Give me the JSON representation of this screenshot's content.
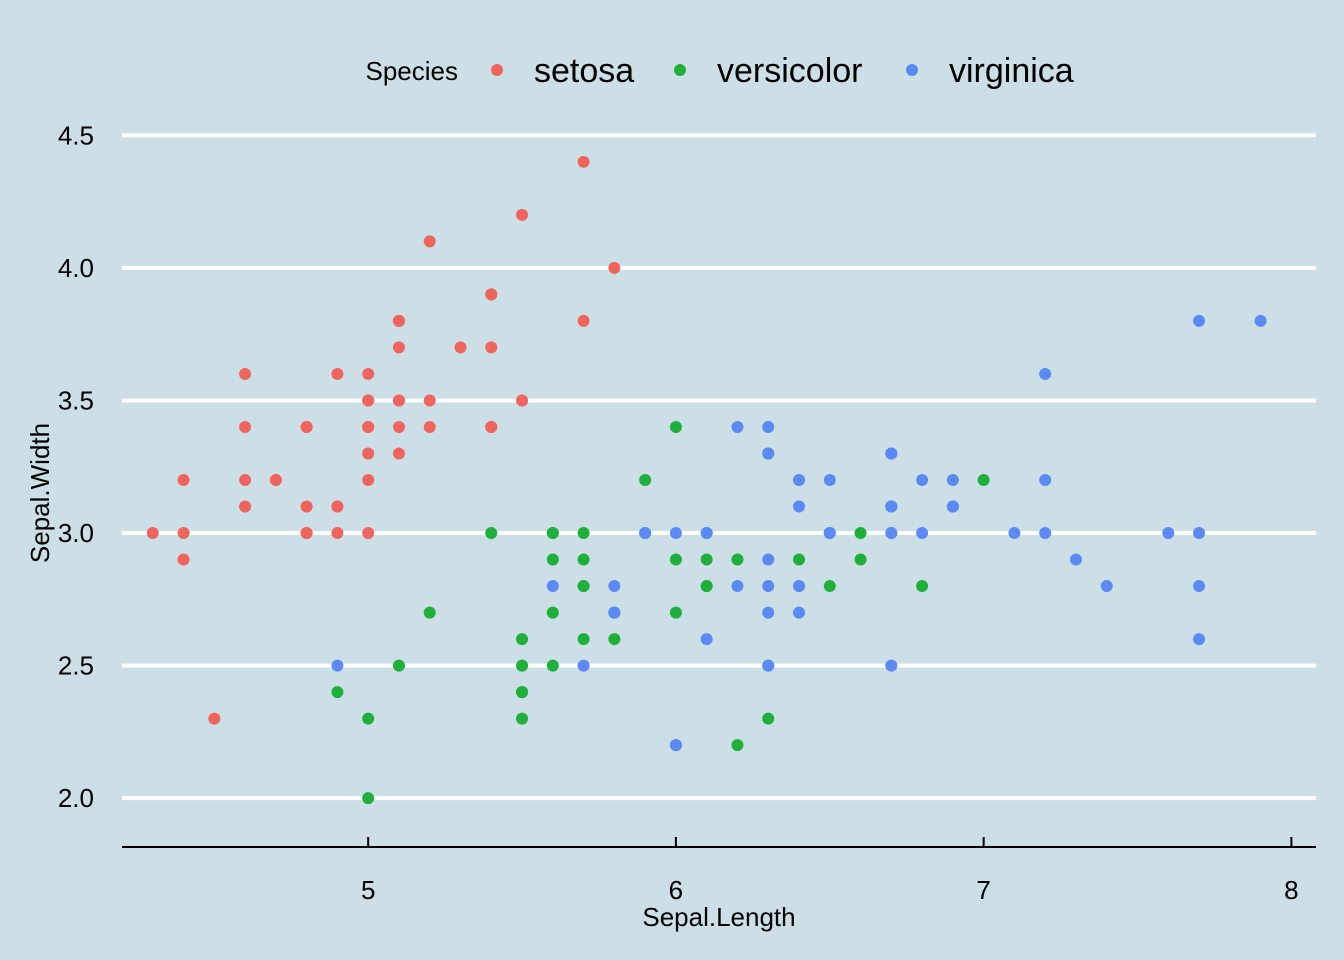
{
  "colors": {
    "background": "#cddfe6",
    "grid": "#ffffff",
    "axis": "#000000",
    "setosa": "#f0645e",
    "versicolor": "#1eb03a",
    "virginica": "#5b8af6"
  },
  "chart_data": {
    "type": "scatter",
    "title": "",
    "xlabel": "Sepal.Length",
    "ylabel": "Sepal.Width",
    "xlim": [
      4.2,
      8.08
    ],
    "ylim": [
      1.88,
      4.52
    ],
    "xticks": [
      5,
      6,
      7,
      8
    ],
    "yticks": [
      2.0,
      2.5,
      3.0,
      3.5,
      4.0,
      4.5
    ],
    "xtick_labels": [
      "5",
      "6",
      "7",
      "8"
    ],
    "ytick_labels": [
      "2.0",
      "2.5",
      "3.0",
      "3.5",
      "4.0",
      "4.5"
    ],
    "legend": {
      "title": "Species",
      "placement": "top",
      "entries": [
        "setosa",
        "versicolor",
        "virginica"
      ]
    },
    "grid": "horizontal",
    "series": [
      {
        "name": "setosa",
        "color": "#f0645e",
        "points": [
          [
            5.1,
            3.5
          ],
          [
            4.9,
            3.0
          ],
          [
            4.7,
            3.2
          ],
          [
            4.6,
            3.1
          ],
          [
            5.0,
            3.6
          ],
          [
            5.4,
            3.9
          ],
          [
            4.6,
            3.4
          ],
          [
            5.0,
            3.4
          ],
          [
            4.4,
            2.9
          ],
          [
            4.9,
            3.1
          ],
          [
            5.4,
            3.7
          ],
          [
            4.8,
            3.4
          ],
          [
            4.8,
            3.0
          ],
          [
            4.3,
            3.0
          ],
          [
            5.8,
            4.0
          ],
          [
            5.7,
            4.4
          ],
          [
            5.4,
            3.9
          ],
          [
            5.1,
            3.5
          ],
          [
            5.7,
            3.8
          ],
          [
            5.1,
            3.8
          ],
          [
            5.4,
            3.4
          ],
          [
            5.1,
            3.7
          ],
          [
            4.6,
            3.6
          ],
          [
            5.1,
            3.3
          ],
          [
            4.8,
            3.4
          ],
          [
            5.0,
            3.0
          ],
          [
            5.0,
            3.4
          ],
          [
            5.2,
            3.5
          ],
          [
            5.2,
            3.4
          ],
          [
            4.7,
            3.2
          ],
          [
            4.8,
            3.1
          ],
          [
            5.4,
            3.4
          ],
          [
            5.2,
            4.1
          ],
          [
            5.5,
            4.2
          ],
          [
            4.9,
            3.1
          ],
          [
            5.0,
            3.2
          ],
          [
            5.5,
            3.5
          ],
          [
            4.9,
            3.6
          ],
          [
            4.4,
            3.0
          ],
          [
            5.1,
            3.4
          ],
          [
            5.0,
            3.5
          ],
          [
            4.5,
            2.3
          ],
          [
            4.4,
            3.2
          ],
          [
            5.0,
            3.5
          ],
          [
            5.1,
            3.8
          ],
          [
            4.8,
            3.0
          ],
          [
            5.1,
            3.8
          ],
          [
            4.6,
            3.2
          ],
          [
            5.3,
            3.7
          ],
          [
            5.0,
            3.3
          ]
        ]
      },
      {
        "name": "versicolor",
        "color": "#1eb03a",
        "points": [
          [
            7.0,
            3.2
          ],
          [
            6.4,
            3.2
          ],
          [
            6.9,
            3.1
          ],
          [
            5.5,
            2.3
          ],
          [
            6.5,
            2.8
          ],
          [
            5.7,
            2.8
          ],
          [
            6.3,
            3.3
          ],
          [
            4.9,
            2.4
          ],
          [
            6.6,
            2.9
          ],
          [
            5.2,
            2.7
          ],
          [
            5.0,
            2.0
          ],
          [
            5.9,
            3.0
          ],
          [
            6.0,
            2.2
          ],
          [
            6.1,
            2.9
          ],
          [
            5.6,
            2.9
          ],
          [
            6.7,
            3.1
          ],
          [
            5.6,
            3.0
          ],
          [
            5.8,
            2.7
          ],
          [
            6.2,
            2.2
          ],
          [
            5.6,
            2.5
          ],
          [
            5.9,
            3.2
          ],
          [
            6.1,
            2.8
          ],
          [
            6.3,
            2.5
          ],
          [
            6.1,
            2.8
          ],
          [
            6.4,
            2.9
          ],
          [
            6.6,
            3.0
          ],
          [
            6.8,
            2.8
          ],
          [
            6.7,
            3.0
          ],
          [
            6.0,
            2.9
          ],
          [
            5.7,
            2.6
          ],
          [
            5.5,
            2.4
          ],
          [
            5.5,
            2.4
          ],
          [
            5.8,
            2.7
          ],
          [
            6.0,
            2.7
          ],
          [
            5.4,
            3.0
          ],
          [
            6.0,
            3.4
          ],
          [
            6.7,
            3.1
          ],
          [
            6.3,
            2.3
          ],
          [
            5.6,
            3.0
          ],
          [
            5.5,
            2.5
          ],
          [
            5.5,
            2.6
          ],
          [
            6.1,
            3.0
          ],
          [
            5.8,
            2.6
          ],
          [
            5.0,
            2.3
          ],
          [
            5.6,
            2.7
          ],
          [
            5.7,
            3.0
          ],
          [
            5.7,
            2.9
          ],
          [
            6.2,
            2.9
          ],
          [
            5.1,
            2.5
          ],
          [
            5.7,
            2.8
          ]
        ]
      },
      {
        "name": "virginica",
        "color": "#5b8af6",
        "points": [
          [
            6.3,
            3.3
          ],
          [
            5.8,
            2.7
          ],
          [
            7.1,
            3.0
          ],
          [
            6.3,
            2.9
          ],
          [
            6.5,
            3.0
          ],
          [
            7.6,
            3.0
          ],
          [
            4.9,
            2.5
          ],
          [
            7.3,
            2.9
          ],
          [
            6.7,
            2.5
          ],
          [
            7.2,
            3.6
          ],
          [
            6.5,
            3.2
          ],
          [
            6.4,
            2.7
          ],
          [
            6.8,
            3.0
          ],
          [
            5.7,
            2.5
          ],
          [
            5.8,
            2.8
          ],
          [
            6.4,
            3.2
          ],
          [
            6.5,
            3.0
          ],
          [
            7.7,
            3.8
          ],
          [
            7.7,
            2.6
          ],
          [
            6.0,
            2.2
          ],
          [
            6.9,
            3.2
          ],
          [
            5.6,
            2.8
          ],
          [
            7.7,
            2.8
          ],
          [
            6.3,
            2.7
          ],
          [
            6.7,
            3.3
          ],
          [
            7.2,
            3.2
          ],
          [
            6.2,
            2.8
          ],
          [
            6.1,
            3.0
          ],
          [
            6.4,
            2.8
          ],
          [
            7.2,
            3.0
          ],
          [
            7.4,
            2.8
          ],
          [
            7.9,
            3.8
          ],
          [
            6.4,
            2.8
          ],
          [
            6.3,
            2.8
          ],
          [
            6.1,
            2.6
          ],
          [
            7.7,
            3.0
          ],
          [
            6.3,
            3.4
          ],
          [
            6.4,
            3.1
          ],
          [
            6.0,
            3.0
          ],
          [
            6.9,
            3.1
          ],
          [
            6.7,
            3.1
          ],
          [
            6.9,
            3.1
          ],
          [
            5.8,
            2.7
          ],
          [
            6.8,
            3.2
          ],
          [
            6.7,
            3.3
          ],
          [
            6.7,
            3.0
          ],
          [
            6.3,
            2.5
          ],
          [
            6.5,
            3.0
          ],
          [
            6.2,
            3.4
          ],
          [
            5.9,
            3.0
          ]
        ]
      }
    ]
  }
}
